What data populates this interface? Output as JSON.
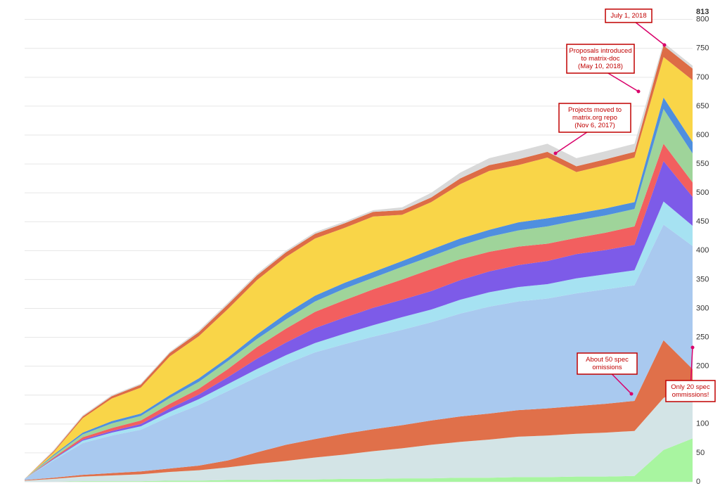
{
  "chart_data": {
    "type": "stacked-area",
    "categories": [
      null,
      null,
      null,
      null,
      null,
      null,
      null,
      null,
      null,
      null,
      null,
      null,
      null,
      null,
      null,
      null,
      null,
      null,
      null,
      null,
      null,
      null,
      null,
      null
    ],
    "ylim": [
      0,
      813
    ],
    "yticks": [
      0,
      50,
      100,
      150,
      200,
      250,
      300,
      350,
      400,
      450,
      500,
      550,
      600,
      650,
      700,
      750,
      800,
      813
    ],
    "grid": true,
    "series": [
      {
        "color": "#a8f5a0",
        "values": [
          0,
          0,
          1,
          1,
          1,
          2,
          2,
          3,
          3,
          4,
          4,
          5,
          5,
          6,
          6,
          7,
          7,
          8,
          8,
          9,
          9,
          10,
          55,
          75
        ]
      },
      {
        "color": "#d3e4e6",
        "values": [
          2,
          5,
          8,
          10,
          12,
          15,
          18,
          22,
          28,
          32,
          38,
          42,
          48,
          52,
          58,
          62,
          66,
          70,
          72,
          74,
          76,
          78,
          90,
          95
        ]
      },
      {
        "color": "#e0704a",
        "values": [
          1,
          2,
          3,
          4,
          5,
          6,
          8,
          12,
          20,
          28,
          32,
          36,
          38,
          40,
          42,
          44,
          45,
          46,
          47,
          48,
          50,
          52,
          100,
          25
        ]
      },
      {
        "color": "#a9c9ef",
        "values": [
          2,
          30,
          55,
          65,
          72,
          90,
          105,
          120,
          130,
          140,
          150,
          155,
          160,
          165,
          170,
          178,
          185,
          188,
          190,
          195,
          198,
          200,
          200,
          213
        ]
      },
      {
        "color": "#a6e2f2",
        "values": [
          0,
          2,
          4,
          5,
          6,
          8,
          10,
          12,
          14,
          15,
          16,
          18,
          20,
          22,
          22,
          24,
          25,
          25,
          25,
          26,
          26,
          26,
          40,
          35
        ]
      },
      {
        "color": "#7d5be8",
        "values": [
          0,
          1,
          2,
          3,
          4,
          6,
          8,
          12,
          18,
          22,
          26,
          28,
          30,
          30,
          32,
          34,
          36,
          38,
          40,
          42,
          42,
          44,
          70,
          50
        ]
      },
      {
        "color": "#f25f5f",
        "values": [
          0,
          2,
          4,
          5,
          6,
          8,
          10,
          14,
          20,
          24,
          28,
          30,
          32,
          35,
          38,
          36,
          34,
          32,
          30,
          28,
          30,
          32,
          30,
          25
        ]
      },
      {
        "color": "#9fd49a",
        "values": [
          0,
          3,
          5,
          8,
          8,
          10,
          12,
          14,
          14,
          16,
          18,
          20,
          20,
          22,
          22,
          24,
          26,
          28,
          30,
          30,
          30,
          30,
          60,
          50
        ]
      },
      {
        "color": "#4f8fdf",
        "values": [
          0,
          2,
          3,
          4,
          4,
          5,
          6,
          6,
          8,
          10,
          10,
          10,
          10,
          10,
          12,
          12,
          12,
          14,
          14,
          12,
          12,
          12,
          20,
          20
        ]
      },
      {
        "color": "#f9d548",
        "values": [
          0,
          4,
          25,
          39,
          45,
          67,
          73,
          84,
          94,
          98,
          99,
          95,
          96,
          80,
          82,
          94,
          102,
          99,
          105,
          72,
          75,
          77,
          70,
          107
        ]
      },
      {
        "color": "#dd6c46",
        "values": [
          0,
          2,
          3,
          4,
          5,
          6,
          7,
          8,
          8,
          8,
          8,
          8,
          8,
          8,
          8,
          10,
          10,
          10,
          10,
          10,
          10,
          10,
          20,
          20
        ]
      },
      {
        "color": "#d9d9d9",
        "values": [
          0,
          2,
          2,
          2,
          2,
          2,
          3,
          3,
          3,
          3,
          3,
          3,
          3,
          5,
          8,
          10,
          12,
          14,
          14,
          14,
          14,
          14,
          5,
          5
        ]
      }
    ],
    "annotations": [
      {
        "lines": [
          "July 1, 2018"
        ]
      },
      {
        "lines": [
          "Proposals introduced",
          "to matrix-doc",
          "(May 10, 2018)"
        ]
      },
      {
        "lines": [
          "Projects moved to",
          "matrix.org repo",
          "(Nov 6, 2017)"
        ]
      },
      {
        "lines": [
          "About 50 spec",
          "omissions"
        ]
      },
      {
        "lines": [
          "Only 20 spec",
          "ommissions!"
        ]
      }
    ]
  }
}
